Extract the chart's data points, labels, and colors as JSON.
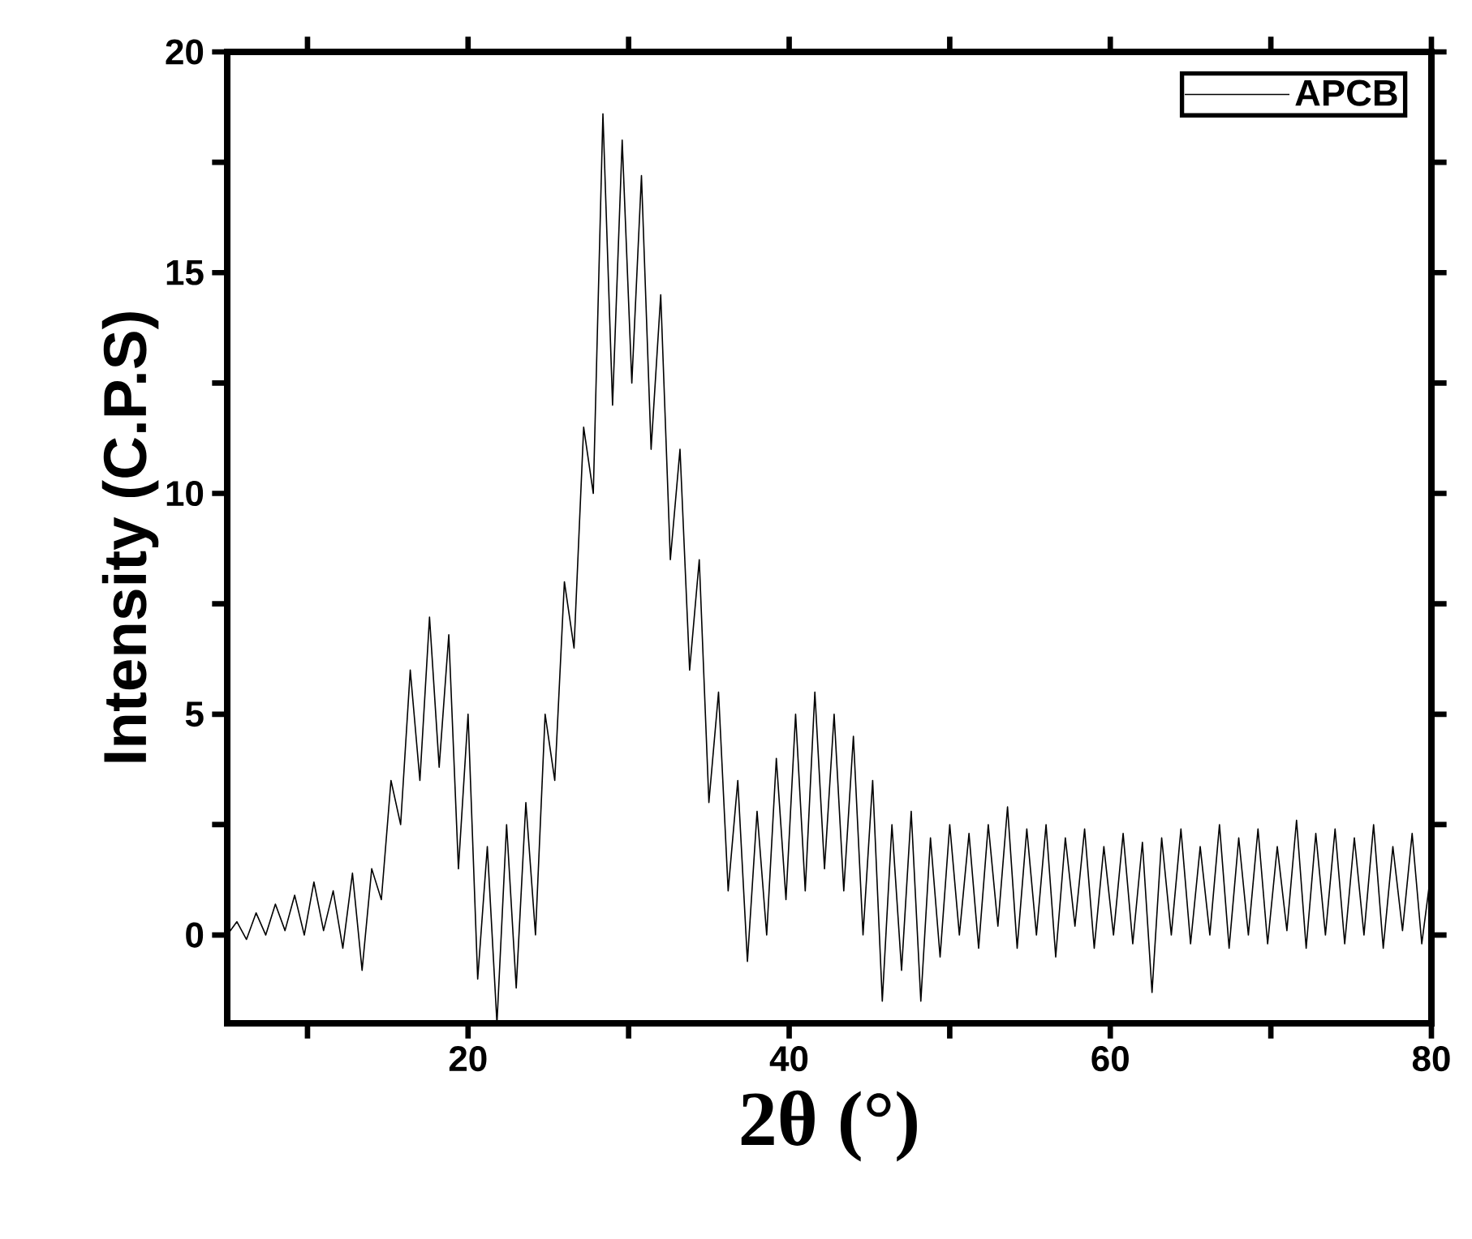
{
  "chart_data": {
    "type": "line",
    "xlabel": "2θ (°)",
    "ylabel": "Intensity (C.P.S)",
    "xlim": [
      5,
      80
    ],
    "ylim": [
      -2,
      20
    ],
    "xticks": [
      {
        "value": 10,
        "label": null
      },
      20,
      {
        "value": 30,
        "label": null
      },
      40,
      {
        "value": 50,
        "label": null
      },
      60,
      {
        "value": 70,
        "label": null
      },
      80
    ],
    "yticks": [
      0,
      {
        "value": 2.5,
        "label": null
      },
      5,
      {
        "value": 7.5,
        "label": null
      },
      10,
      {
        "value": 12.5,
        "label": null
      },
      15,
      {
        "value": 17.5,
        "label": null
      },
      20
    ],
    "legend": "top right",
    "grid": false,
    "series": [
      {
        "name": "APCB",
        "color": "#000000",
        "x": [
          5.0,
          5.6,
          6.2,
          6.8,
          7.4,
          8.0,
          8.6,
          9.2,
          9.8,
          10.4,
          11.0,
          11.6,
          12.2,
          12.8,
          13.4,
          14.0,
          14.6,
          15.2,
          15.8,
          16.4,
          17.0,
          17.6,
          18.2,
          18.8,
          19.4,
          20.0,
          20.6,
          21.2,
          21.8,
          22.4,
          23.0,
          23.6,
          24.2,
          24.8,
          25.4,
          26.0,
          26.6,
          27.2,
          27.8,
          28.4,
          29.0,
          29.6,
          30.2,
          30.8,
          31.4,
          32.0,
          32.6,
          33.2,
          33.8,
          34.4,
          35.0,
          35.6,
          36.2,
          36.8,
          37.4,
          38.0,
          38.6,
          39.2,
          39.8,
          40.4,
          41.0,
          41.6,
          42.2,
          42.8,
          43.4,
          44.0,
          44.6,
          45.2,
          45.8,
          46.4,
          47.0,
          47.6,
          48.2,
          48.8,
          49.4,
          50.0,
          50.6,
          51.2,
          51.8,
          52.4,
          53.0,
          53.6,
          54.2,
          54.8,
          55.4,
          56.0,
          56.6,
          57.2,
          57.8,
          58.4,
          59.0,
          59.6,
          60.2,
          60.8,
          61.4,
          62.0,
          62.6,
          63.2,
          63.8,
          64.4,
          65.0,
          65.6,
          66.2,
          66.8,
          67.4,
          68.0,
          68.6,
          69.2,
          69.8,
          70.4,
          71.0,
          71.6,
          72.2,
          72.8,
          73.4,
          74.0,
          74.6,
          75.2,
          75.8,
          76.4,
          77.0,
          77.6,
          78.2,
          78.8,
          79.4,
          80.0
        ],
        "values": [
          0.0,
          0.3,
          -0.1,
          0.5,
          0.0,
          0.7,
          0.1,
          0.9,
          0.0,
          1.2,
          0.1,
          1.0,
          -0.3,
          1.4,
          -0.8,
          1.5,
          0.8,
          3.5,
          2.5,
          6.0,
          3.5,
          7.2,
          3.8,
          6.8,
          1.5,
          5.0,
          -1.0,
          2.0,
          -2.0,
          2.5,
          -1.2,
          3.0,
          0.0,
          5.0,
          3.5,
          8.0,
          6.5,
          11.5,
          10.0,
          18.6,
          12.0,
          18.0,
          12.5,
          17.2,
          11.0,
          14.5,
          8.5,
          11.0,
          6.0,
          8.5,
          3.0,
          5.5,
          1.0,
          3.5,
          -0.6,
          2.8,
          0.0,
          4.0,
          0.8,
          5.0,
          1.0,
          5.5,
          1.5,
          5.0,
          1.0,
          4.5,
          0.0,
          3.5,
          -1.5,
          2.5,
          -0.8,
          2.8,
          -1.5,
          2.2,
          -0.5,
          2.5,
          0.0,
          2.3,
          -0.3,
          2.5,
          0.2,
          2.9,
          -0.3,
          2.4,
          0.0,
          2.5,
          -0.5,
          2.2,
          0.2,
          2.4,
          -0.3,
          2.0,
          0.0,
          2.3,
          -0.2,
          2.1,
          -1.3,
          2.2,
          0.0,
          2.4,
          -0.2,
          2.0,
          0.0,
          2.5,
          -0.3,
          2.2,
          0.0,
          2.4,
          -0.2,
          2.0,
          0.1,
          2.6,
          -0.3,
          2.3,
          0.0,
          2.4,
          -0.2,
          2.2,
          0.0,
          2.5,
          -0.3,
          2.0,
          0.1,
          2.3,
          -0.2,
          1.5
        ]
      }
    ]
  }
}
